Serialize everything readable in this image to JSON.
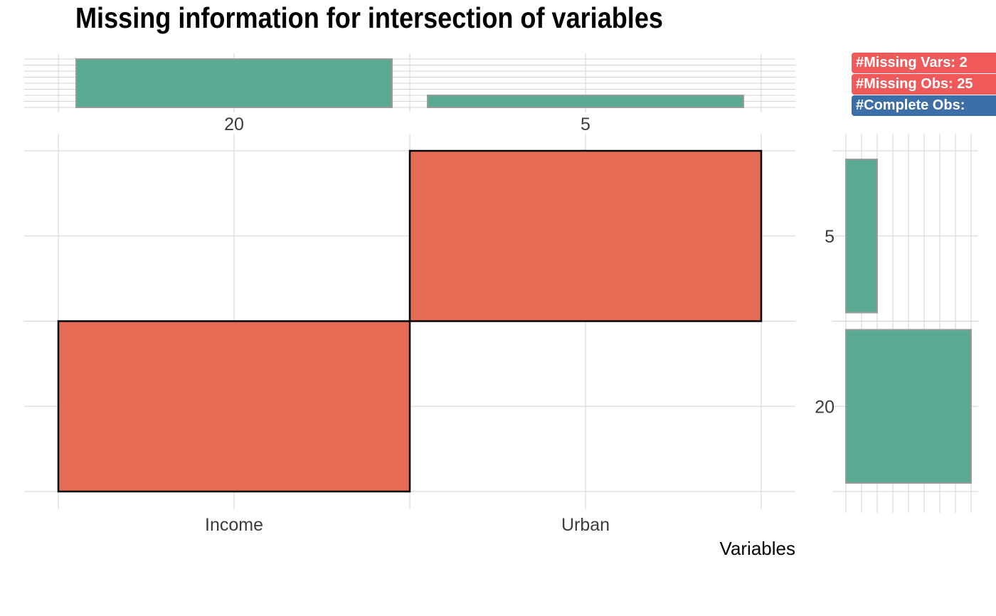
{
  "title": "Missing information for intersection of variables",
  "badges": [
    {
      "text": "#Missing Vars: 2",
      "color": "#f15a5a"
    },
    {
      "text": "#Missing Obs: 25",
      "color": "#f15a5a"
    },
    {
      "text": "#Complete Obs: ",
      "color": "#3c6fa8"
    }
  ],
  "colors": {
    "missing_tile": "#e66b55",
    "bar_fill": "#5ba993",
    "bar_stroke": "#9b9b9b",
    "grid": "#d3d3d3"
  },
  "chart_data": [
    {
      "type": "bar",
      "panel": "top",
      "categories": [
        "Income",
        "Urban"
      ],
      "values": [
        20,
        5
      ],
      "labels": [
        "20",
        "5"
      ]
    },
    {
      "type": "heatmap",
      "panel": "main",
      "xlabel": "Variables",
      "x_categories": [
        "Income",
        "Urban"
      ],
      "y_categories": [
        "20",
        "5"
      ],
      "cells": [
        {
          "x": "Income",
          "y": "20",
          "missing": true
        },
        {
          "x": "Urban",
          "y": "20",
          "missing": false
        },
        {
          "x": "Income",
          "y": "5",
          "missing": false
        },
        {
          "x": "Urban",
          "y": "5",
          "missing": true
        }
      ]
    },
    {
      "type": "bar",
      "panel": "right",
      "orientation": "horizontal",
      "categories": [
        "5",
        "20"
      ],
      "values": [
        5,
        20
      ],
      "labels": [
        "5",
        "20"
      ]
    }
  ]
}
